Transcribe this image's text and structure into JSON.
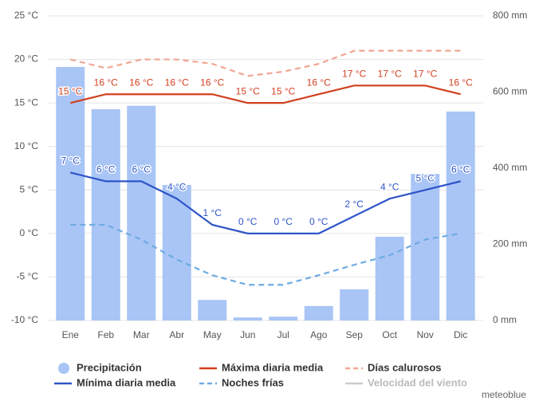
{
  "chart_data": {
    "type": "bar-line",
    "categories": [
      "Ene",
      "Feb",
      "Mar",
      "Abr",
      "May",
      "Jun",
      "Jul",
      "Ago",
      "Sep",
      "Oct",
      "Nov",
      "Dic"
    ],
    "ylim": [
      -10,
      25
    ],
    "yticks": [
      {
        "value": -10,
        "label": "-10 °C"
      },
      {
        "value": -5,
        "label": "-5 °C"
      },
      {
        "value": 0,
        "label": "0 °C"
      },
      {
        "value": 5,
        "label": "5 °C"
      },
      {
        "value": 10,
        "label": "10 °C"
      },
      {
        "value": 15,
        "label": "15 °C"
      },
      {
        "value": 20,
        "label": "20 °C"
      },
      {
        "value": 25,
        "label": "25 °C"
      }
    ],
    "y2lim": [
      0,
      800
    ],
    "y2ticks": [
      {
        "value": 0,
        "label": "0 mm"
      },
      {
        "value": 200,
        "label": "200 mm"
      },
      {
        "value": 400,
        "label": "400 mm"
      },
      {
        "value": 600,
        "label": "600 mm"
      },
      {
        "value": 800,
        "label": "800 mm"
      }
    ],
    "grid": true,
    "series": [
      {
        "name": "Precipitación",
        "kind": "bar",
        "axis": "y2",
        "color": "#a9c5f6",
        "values": [
          666,
          555,
          564,
          356,
          54,
          8,
          10,
          38,
          82,
          220,
          385,
          549
        ]
      },
      {
        "name": "Máxima diaria media",
        "kind": "line",
        "color": "#d2401f",
        "values": [
          15,
          16,
          16,
          16,
          16,
          15,
          15,
          16,
          17,
          17,
          17,
          16
        ],
        "value_labels": [
          "15 °C",
          "16 °C",
          "16 °C",
          "16 °C",
          "16 °C",
          "15 °C",
          "15 °C",
          "16 °C",
          "17 °C",
          "17 °C",
          "17 °C",
          "16 °C"
        ]
      },
      {
        "name": "Días calurosos",
        "kind": "dashed",
        "color": "#f2a593",
        "values": [
          20,
          19,
          20,
          20,
          19.5,
          18.1,
          18.6,
          19.5,
          21,
          21,
          21,
          21
        ]
      },
      {
        "name": "Mínima diaria media",
        "kind": "line",
        "color": "#2f55c8",
        "values": [
          7,
          6,
          6,
          4,
          1,
          0,
          0,
          0,
          2,
          4,
          5,
          6
        ],
        "value_labels": [
          "7 °C",
          "6 °C",
          "6 °C",
          "4 °C",
          "1 °C",
          "0 °C",
          "0 °C",
          "0 °C",
          "2 °C",
          "4 °C",
          "5 °C",
          "6 °C"
        ]
      },
      {
        "name": "Noches frías",
        "kind": "dashed",
        "color": "#6eaae2",
        "values": [
          1,
          1,
          -0.7,
          -3,
          -4.8,
          -5.9,
          -5.9,
          -4.8,
          -3.6,
          -2.5,
          -0.7,
          0
        ]
      },
      {
        "name": "Velocidad del viento",
        "kind": "line",
        "color": "#cccccc",
        "values": [
          null,
          null,
          null,
          null,
          null,
          null,
          null,
          null,
          null,
          null,
          null,
          null
        ]
      }
    ],
    "watermark": "meteoblue"
  }
}
